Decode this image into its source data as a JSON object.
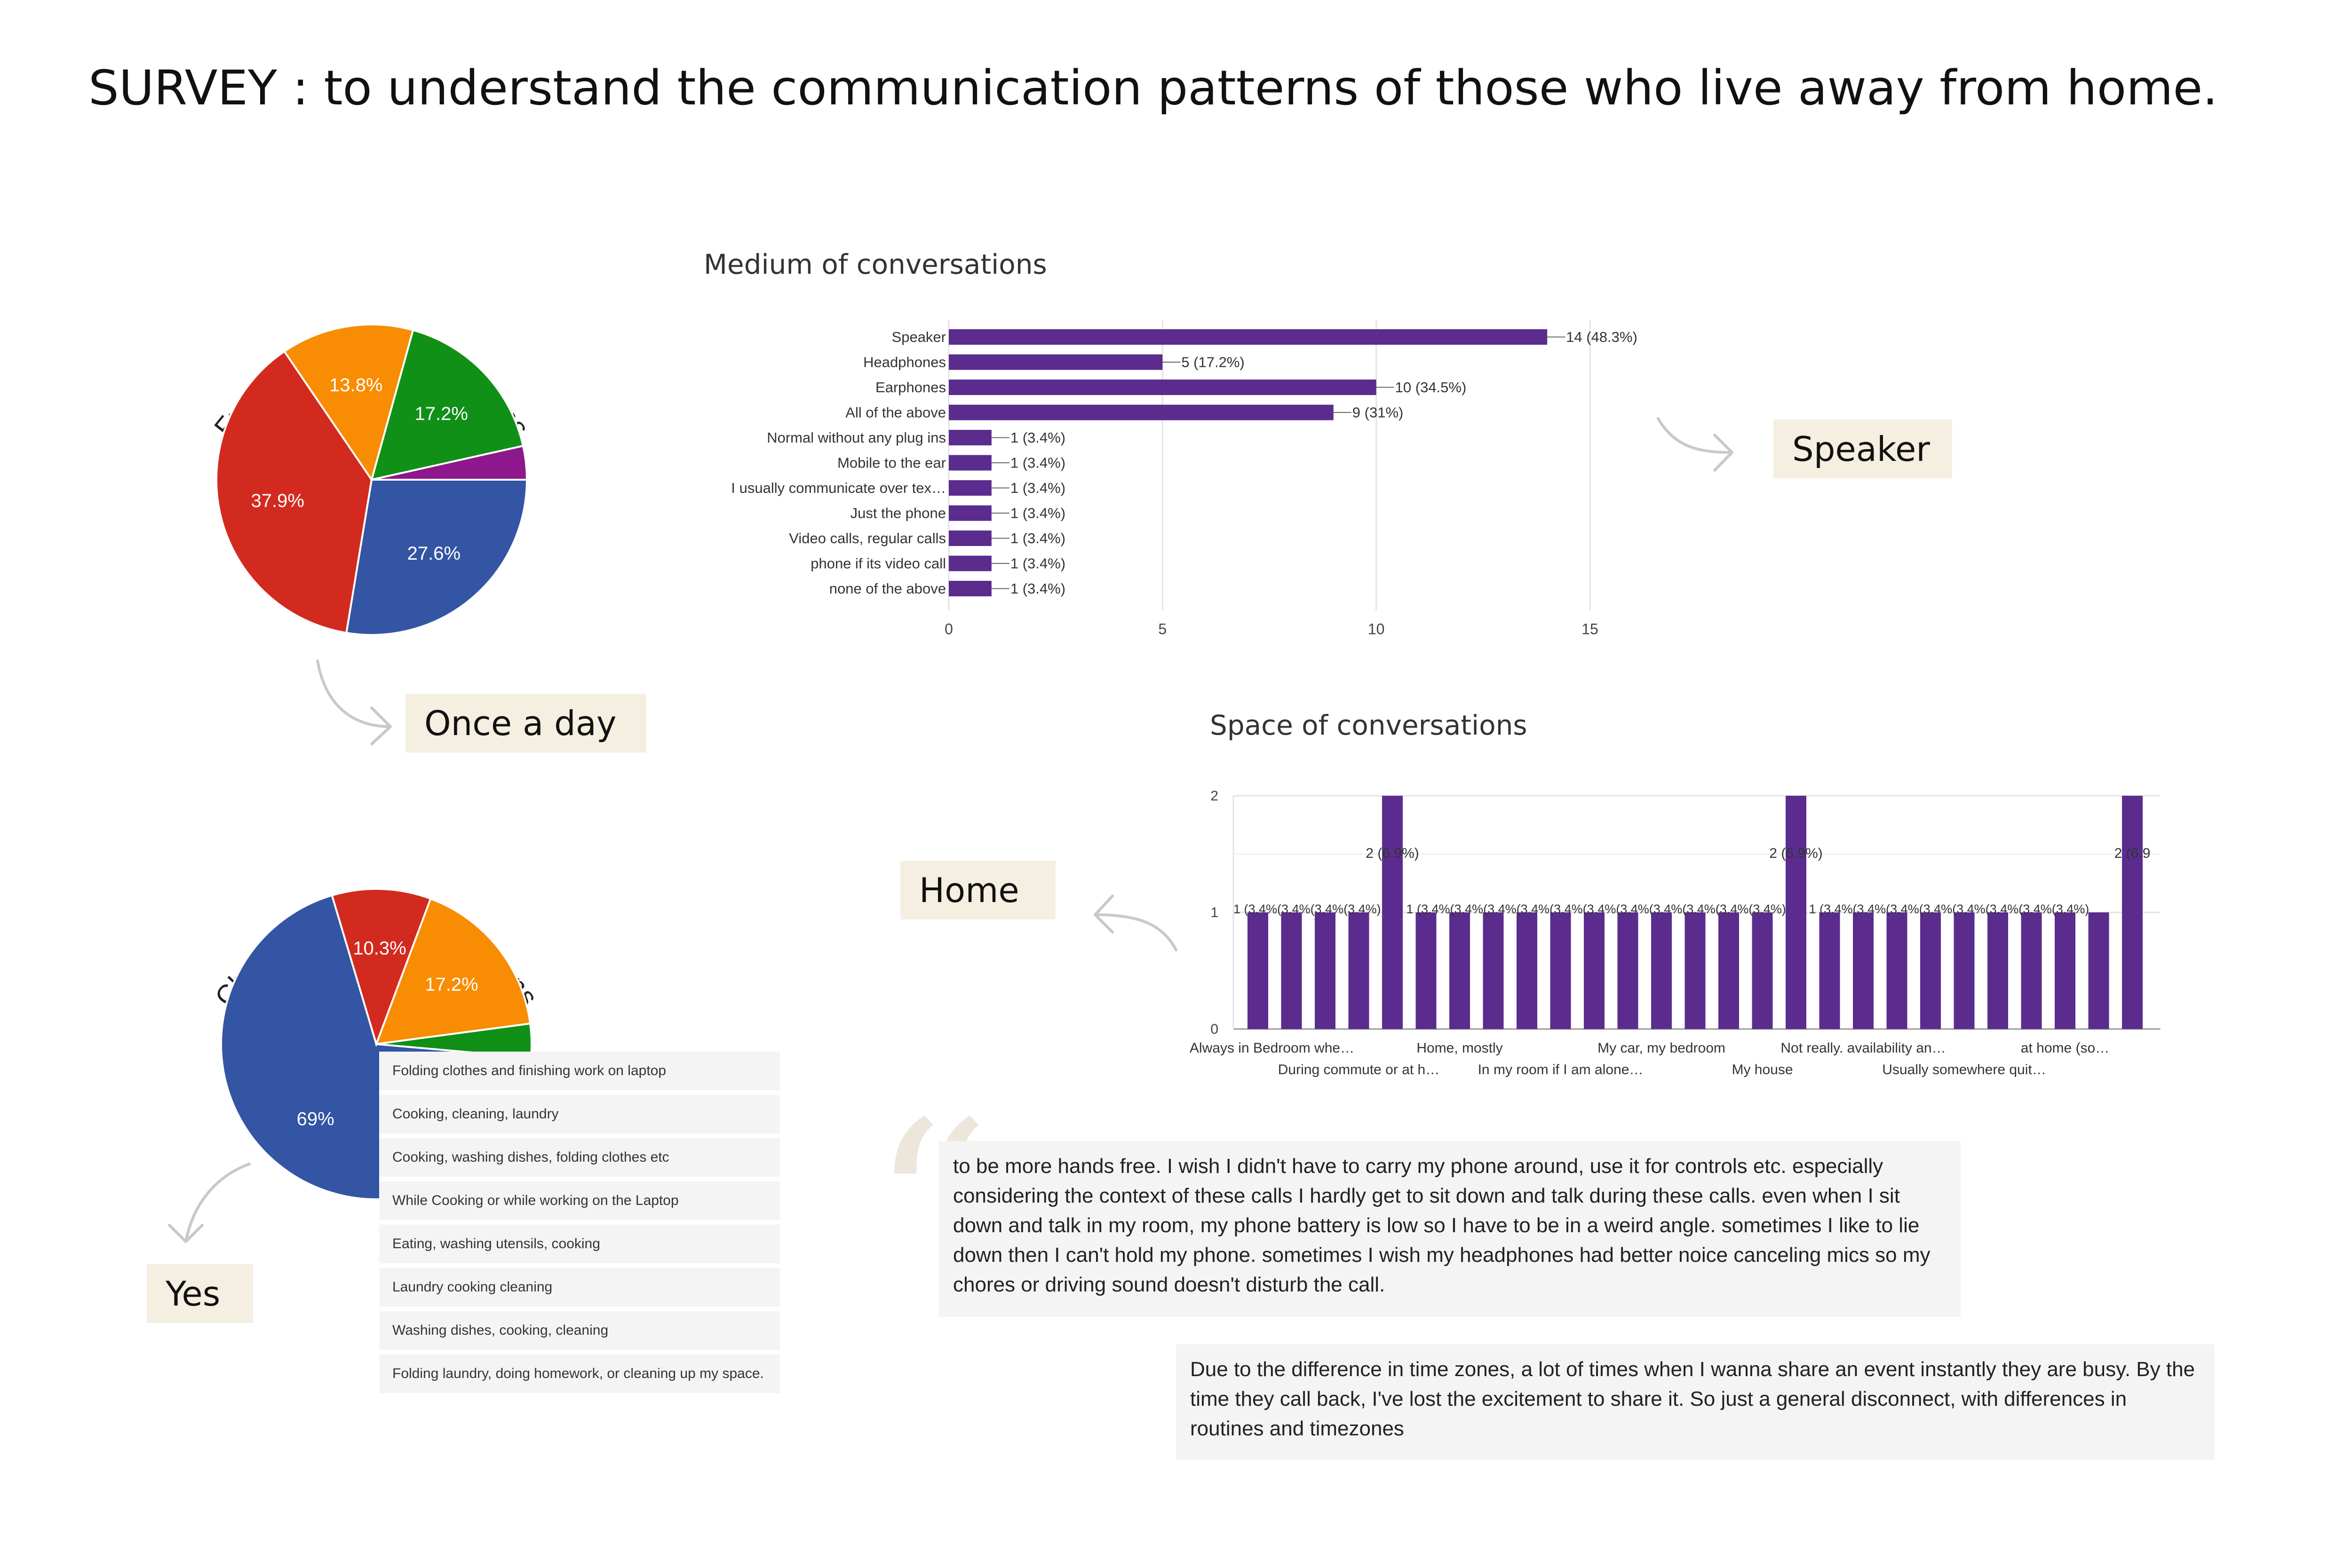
{
  "page": {
    "title": "SURVEY : to understand the communication patterns of those who live away from home."
  },
  "colors": {
    "bar": "#5b2c8e",
    "tag_bg": "#f5efe2",
    "pie_blue": "#3355a3",
    "pie_red": "#d32a1f",
    "pie_orange": "#f88c02",
    "pie_green": "#119018",
    "pie_purple": "#8d188d"
  },
  "tags": {
    "frequency": "Once a day",
    "chores": "Yes",
    "medium": "Speaker",
    "space": "Home"
  },
  "chart_data": [
    {
      "type": "pie",
      "title": "Frequency of conversations",
      "slices": [
        {
          "label": "27.6%",
          "value": 27.6,
          "color": "#3355a3"
        },
        {
          "label": "37.9%",
          "value": 37.9,
          "color": "#d32a1f"
        },
        {
          "label": "13.8%",
          "value": 13.8,
          "color": "#f88c02"
        },
        {
          "label": "17.2%",
          "value": 17.2,
          "color": "#119018"
        },
        {
          "label": "",
          "value": 3.5,
          "color": "#8d188d"
        }
      ]
    },
    {
      "type": "pie",
      "title": "Chores during conversations",
      "slices": [
        {
          "label": "69%",
          "value": 69,
          "color": "#3355a3"
        },
        {
          "label": "10.3%",
          "value": 10.3,
          "color": "#d32a1f"
        },
        {
          "label": "17.2%",
          "value": 17.2,
          "color": "#f88c02"
        },
        {
          "label": "",
          "value": 3.5,
          "color": "#119018"
        }
      ]
    },
    {
      "type": "bar",
      "orientation": "horizontal",
      "title": "Medium of conversations",
      "categories": [
        "Speaker",
        "Headphones",
        "Earphones",
        "All of the above",
        "Normal without any plug ins",
        "Mobile to the ear",
        "I usually communicate over tex…",
        "Just the phone",
        "Video calls, regular calls",
        "phone if its video call",
        "none of the above"
      ],
      "values": [
        14,
        5,
        10,
        9,
        1,
        1,
        1,
        1,
        1,
        1,
        1
      ],
      "data_labels": [
        "14 (48.3%)",
        "5 (17.2%)",
        "10 (34.5%)",
        "9 (31%)",
        "1 (3.4%)",
        "1 (3.4%)",
        "1 (3.4%)",
        "1 (3.4%)",
        "1 (3.4%)",
        "1 (3.4%)",
        "1 (3.4%)"
      ],
      "xlim": [
        0,
        15
      ],
      "xticks": [
        "0",
        "5",
        "10",
        "15"
      ]
    },
    {
      "type": "bar",
      "orientation": "vertical",
      "title": "Space of conversations",
      "values": [
        1,
        1,
        1,
        1,
        2,
        1,
        1,
        1,
        1,
        1,
        1,
        1,
        1,
        1,
        1,
        1,
        2,
        1,
        1,
        1,
        1,
        1,
        1,
        1,
        1,
        1,
        2
      ],
      "value_labels_left": "1 (3.4%(3.4%(3.4%(3.4%)",
      "value_labels_mid": "1 (3.4%(3.4%(3.4%(3.4%(3.4%(3.4%(3.4%(3.4%(3.4%(3.4%(3.4%)",
      "value_labels_right": "1 (3.4%(3.4%(3.4%(3.4%(3.4%(3.4%(3.4%(3.4%)",
      "peak_label": "2 (6.9%)",
      "peak_label_cut": "2 (6.9",
      "ylim": [
        0,
        2
      ],
      "yticks": [
        "0",
        "1",
        "2"
      ],
      "xlabels_top": [
        "Always in Bedroom whe…",
        "Home, mostly",
        "My car, my bedroom",
        "Not really. availability an…",
        "at home (so…"
      ],
      "xlabels_bottom": [
        "During commute or at h…",
        "In my room if I am alone…",
        "My house",
        "Usually somewhere quit…"
      ]
    }
  ],
  "chores_responses": [
    "Folding clothes and finishing work on laptop",
    "Cooking, cleaning, laundry",
    "Cooking, washing dishes, folding clothes etc",
    "While Cooking or while working on the Laptop",
    "Eating, washing utensils, cooking",
    "Laundry cooking cleaning",
    "Washing dishes, cooking, cleaning",
    "Folding laundry, doing homework, or cleaning up my space."
  ],
  "quotes": {
    "mark": "“",
    "q1": "to be more hands free. I wish I didn't have to carry my phone around, use it for controls etc. especially considering the context of these calls I hardly get to sit down and talk during these calls. even when I sit down and talk in my room, my phone battery is low so I have to be in a weird angle. sometimes I like to lie down then I can't hold my phone. sometimes I wish my headphones had better noice canceling mics so my chores or driving sound doesn't disturb the call.",
    "q2": "Due to the difference in time zones, a lot of times when I wanna share an event instantly they are busy. By the time they call back, I've lost the excitement to share it. So just a general disconnect, with differences in routines and timezones"
  }
}
